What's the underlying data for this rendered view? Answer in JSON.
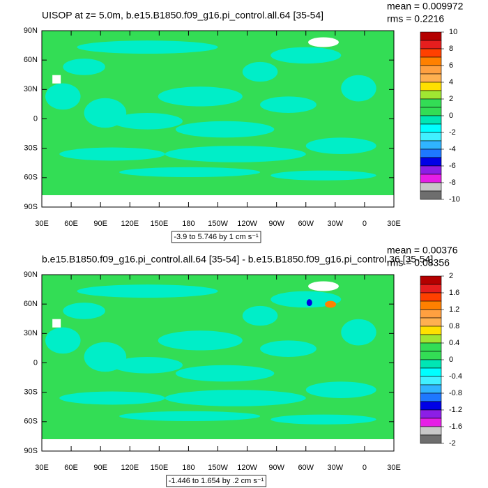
{
  "panels": [
    {
      "title": "UISOP at z=   5.0m, b.e15.B1850.f09_g16.pi_control.all.64 [35-54]",
      "stats": [
        "mean = 0.009972",
        "rms = 0.2216"
      ],
      "lat_ticks": [
        {
          "value": 90,
          "label": "90N"
        },
        {
          "value": 60,
          "label": "60N"
        },
        {
          "value": 30,
          "label": "30N"
        },
        0,
        {
          "value": -30,
          "label": "30S"
        },
        {
          "value": -60,
          "label": "60S"
        },
        {
          "value": -90,
          "label": "90S"
        }
      ],
      "lon_ticks": [
        {
          "value": 30,
          "label": "30E"
        },
        {
          "value": 60,
          "label": "60E"
        },
        {
          "value": 90,
          "label": "90E"
        },
        {
          "value": 120,
          "label": "120E"
        },
        {
          "value": 150,
          "label": "150E"
        },
        180,
        {
          "value": 210,
          "label": "150W"
        },
        {
          "value": 240,
          "label": "120W"
        },
        {
          "value": 270,
          "label": "90W"
        },
        {
          "value": 300,
          "label": "60W"
        },
        {
          "value": 330,
          "label": "30W"
        },
        {
          "value": 360,
          "label": "0"
        },
        {
          "value": 390,
          "label": "30E"
        }
      ],
      "colorbar": {
        "ticks": [
          10,
          8,
          6,
          4,
          2,
          0,
          -2,
          -4,
          -6,
          -8,
          -10
        ],
        "colors": [
          "#b40000",
          "#e61e1e",
          "#ff4000",
          "#ff8000",
          "#ffa040",
          "#ffb050",
          "#ffe000",
          "#a0e632",
          "#33dd55",
          "#33dd55",
          "#00e6b4",
          "#00ffff",
          "#40f0ff",
          "#30b4ff",
          "#1e78ff",
          "#0000e6",
          "#8c1ee6",
          "#e61ee6",
          "#c8c8c8",
          "#6e6e6e"
        ]
      },
      "contour_info": "-3.9 to 5.746 by 1 cm s⁻¹"
    },
    {
      "title": "b.e15.B1850.f09_g16.pi_control.all.64 [35-54] - b.e15.B1850.f09_g16.pi_control.36 [35-54]",
      "stats": [
        "mean = 0.00376",
        "rms = 0.08356"
      ],
      "lat_ticks": [
        {
          "value": 90,
          "label": "90N"
        },
        {
          "value": 60,
          "label": "60N"
        },
        {
          "value": 30,
          "label": "30N"
        },
        0,
        {
          "value": -30,
          "label": "30S"
        },
        {
          "value": -60,
          "label": "60S"
        },
        {
          "value": -90,
          "label": "90S"
        }
      ],
      "lon_ticks": [
        {
          "value": 30,
          "label": "30E"
        },
        {
          "value": 60,
          "label": "60E"
        },
        {
          "value": 90,
          "label": "90E"
        },
        {
          "value": 120,
          "label": "120E"
        },
        {
          "value": 150,
          "label": "150E"
        },
        180,
        {
          "value": 210,
          "label": "150W"
        },
        {
          "value": 240,
          "label": "120W"
        },
        {
          "value": 270,
          "label": "90W"
        },
        {
          "value": 300,
          "label": "60W"
        },
        {
          "value": 330,
          "label": "30W"
        },
        {
          "value": 360,
          "label": "0"
        },
        {
          "value": 390,
          "label": "30E"
        }
      ],
      "colorbar": {
        "ticks": [
          2,
          1.6,
          1.2,
          0.8,
          0.4,
          0,
          -0.4,
          -0.8,
          -1.2,
          -1.6,
          -2
        ],
        "colors": [
          "#b40000",
          "#e61e1e",
          "#ff4000",
          "#ff8000",
          "#ffa040",
          "#ffb050",
          "#ffe000",
          "#a0e632",
          "#33dd55",
          "#33dd55",
          "#00e6b4",
          "#00ffff",
          "#40f0ff",
          "#30b4ff",
          "#1e78ff",
          "#0000e6",
          "#8c1ee6",
          "#e61ee6",
          "#c8c8c8",
          "#6e6e6e"
        ]
      },
      "contour_info": "-1.446 to 1.654 by .2 cm s⁻¹"
    }
  ]
}
